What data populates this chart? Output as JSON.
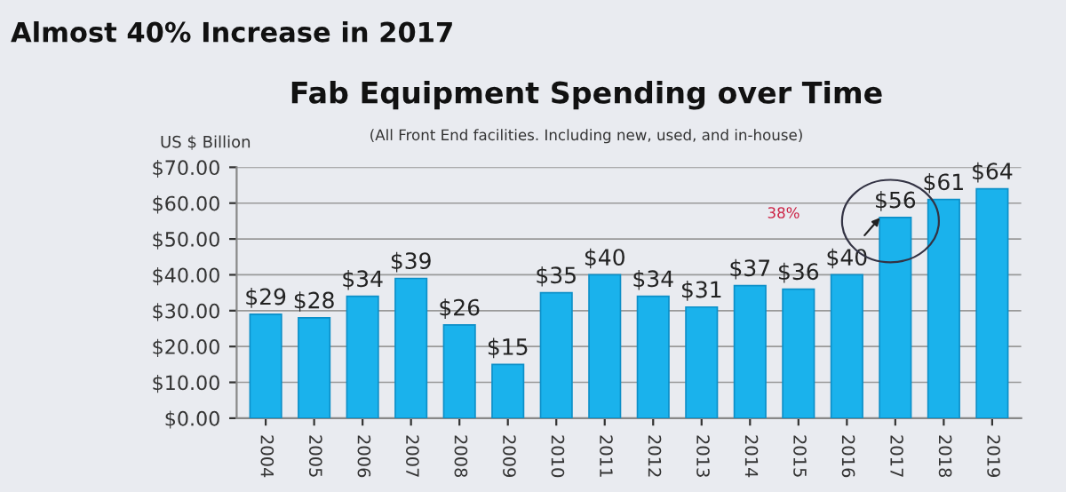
{
  "chart_data": {
    "type": "bar",
    "title": "Fab Equipment Spending over Time",
    "subtitle": "(All Front End facilities. Including new, used, and in-house)",
    "ylabel": "US $ Billion",
    "annotations": [
      "Almost 40% Increase in 2017",
      "38%"
    ],
    "categories": [
      "2004",
      "2005",
      "2006",
      "2007",
      "2008",
      "2009",
      "2010",
      "2011",
      "2012",
      "2013",
      "2014",
      "2015",
      "2016",
      "2017",
      "2018",
      "2019"
    ],
    "values": [
      29,
      28,
      34,
      39,
      26,
      15,
      35,
      40,
      34,
      31,
      37,
      36,
      40,
      56,
      61,
      64
    ],
    "value_labels": [
      "$29",
      "$28",
      "$34",
      "$39",
      "$26",
      "$15",
      "$35",
      "$40",
      "$34",
      "$31",
      "$37",
      "$36",
      "$40",
      "$56",
      "$61",
      "$64"
    ],
    "color": "#1ab2ec",
    "ylim": [
      0,
      70
    ],
    "yticks": [
      {
        "value": 0,
        "label": "$0.00"
      },
      {
        "value": 10,
        "label": "$10.00"
      },
      {
        "value": 20,
        "label": "$20.00"
      },
      {
        "value": 30,
        "label": "$30.00"
      },
      {
        "value": 40,
        "label": "$40.00"
      },
      {
        "value": 50,
        "label": "$50.00"
      },
      {
        "value": 60,
        "label": "$60.00"
      },
      {
        "value": 70,
        "label": "$70.00"
      }
    ],
    "grid": "y"
  }
}
